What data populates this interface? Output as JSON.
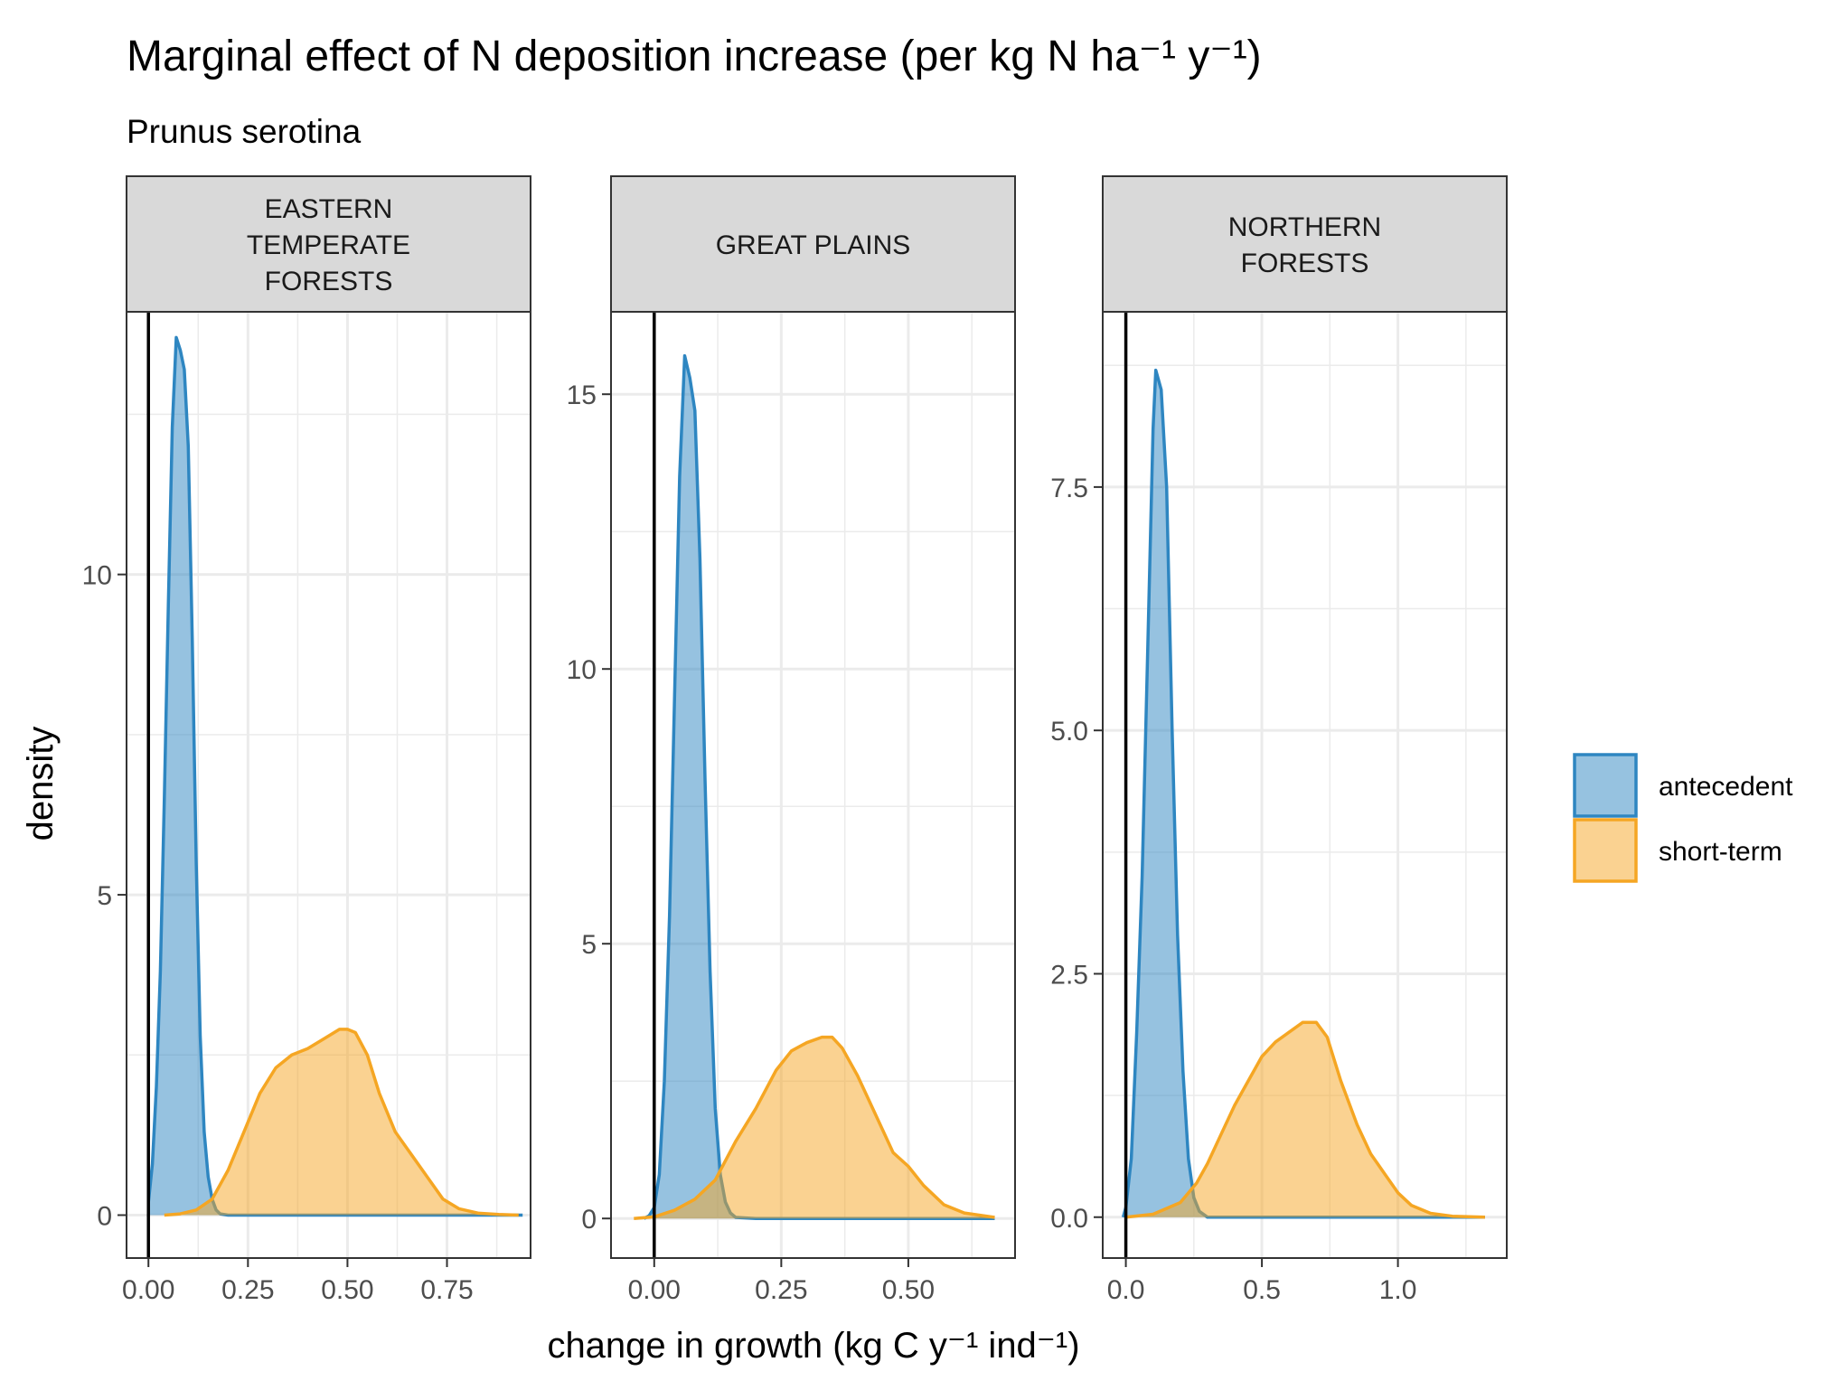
{
  "title": "Marginal effect of N deposition increase (per kg N ha⁻¹ y⁻¹)",
  "subtitle": "Prunus serotina",
  "colors": {
    "antecedent": "#2E86C1",
    "short_term": "#F5A623",
    "strip_fill": "#D9D9D9",
    "grid": "#EBEBEB"
  },
  "legend": {
    "placement": "right",
    "items": [
      {
        "key": "antecedent",
        "label": "antecedent"
      },
      {
        "key": "short_term",
        "label": "short-term"
      }
    ]
  },
  "chart_data": {
    "type": "area",
    "subtype": "density",
    "xlabel": "change in growth (kg C y⁻¹ ind⁻¹)",
    "ylabel": "density",
    "grid": true,
    "reference_line_x": 0,
    "panels": [
      {
        "strip": [
          "EASTERN",
          "TEMPERATE",
          "FORESTS"
        ],
        "xlim": [
          -0.055,
          0.96
        ],
        "ylim": [
          -0.67,
          14.1
        ],
        "xticks": [
          0,
          0.25,
          0.5,
          0.75
        ],
        "xtick_labels": [
          "0.00",
          "0.25",
          "0.50",
          "0.75"
        ],
        "yticks": [
          0,
          5,
          10
        ],
        "ytick_labels": [
          "0",
          "5",
          "10"
        ],
        "series": [
          {
            "name": "antecedent",
            "points": [
              [
                0.0,
                0.2
              ],
              [
                0.01,
                0.8
              ],
              [
                0.02,
                2.0
              ],
              [
                0.03,
                3.8
              ],
              [
                0.04,
                6.5
              ],
              [
                0.05,
                9.5
              ],
              [
                0.06,
                12.3
              ],
              [
                0.07,
                13.7
              ],
              [
                0.08,
                13.5
              ],
              [
                0.09,
                13.2
              ],
              [
                0.1,
                12.0
              ],
              [
                0.11,
                9.0
              ],
              [
                0.12,
                5.5
              ],
              [
                0.13,
                2.8
              ],
              [
                0.14,
                1.3
              ],
              [
                0.15,
                0.6
              ],
              [
                0.16,
                0.25
              ],
              [
                0.17,
                0.08
              ],
              [
                0.18,
                0.02
              ],
              [
                0.2,
                0.0
              ],
              [
                0.4,
                0.0
              ],
              [
                0.6,
                0.0
              ],
              [
                0.8,
                0.0
              ],
              [
                0.94,
                0.0
              ]
            ]
          },
          {
            "name": "short-term",
            "points": [
              [
                0.04,
                0.0
              ],
              [
                0.08,
                0.02
              ],
              [
                0.12,
                0.08
              ],
              [
                0.16,
                0.25
              ],
              [
                0.2,
                0.7
              ],
              [
                0.24,
                1.3
              ],
              [
                0.28,
                1.9
              ],
              [
                0.32,
                2.3
              ],
              [
                0.36,
                2.5
              ],
              [
                0.4,
                2.6
              ],
              [
                0.44,
                2.75
              ],
              [
                0.48,
                2.9
              ],
              [
                0.5,
                2.9
              ],
              [
                0.52,
                2.85
              ],
              [
                0.55,
                2.5
              ],
              [
                0.58,
                1.9
              ],
              [
                0.62,
                1.3
              ],
              [
                0.66,
                0.95
              ],
              [
                0.7,
                0.6
              ],
              [
                0.74,
                0.25
              ],
              [
                0.78,
                0.1
              ],
              [
                0.83,
                0.03
              ],
              [
                0.88,
                0.01
              ],
              [
                0.93,
                0.0
              ]
            ]
          }
        ]
      },
      {
        "strip": [
          "GREAT PLAINS"
        ],
        "xlim": [
          -0.085,
          0.71
        ],
        "ylim": [
          -0.72,
          16.5
        ],
        "xticks": [
          0,
          0.25,
          0.5
        ],
        "xtick_labels": [
          "0.00",
          "0.25",
          "0.50"
        ],
        "yticks": [
          0,
          5,
          10,
          15
        ],
        "ytick_labels": [
          "0",
          "5",
          "10",
          "15"
        ],
        "series": [
          {
            "name": "antecedent",
            "points": [
              [
                -0.02,
                0.0
              ],
              [
                -0.01,
                0.05
              ],
              [
                0.0,
                0.2
              ],
              [
                0.01,
                0.8
              ],
              [
                0.02,
                2.5
              ],
              [
                0.03,
                5.5
              ],
              [
                0.04,
                9.5
              ],
              [
                0.05,
                13.5
              ],
              [
                0.06,
                15.7
              ],
              [
                0.07,
                15.3
              ],
              [
                0.08,
                14.7
              ],
              [
                0.09,
                12.0
              ],
              [
                0.1,
                8.0
              ],
              [
                0.11,
                4.5
              ],
              [
                0.12,
                2.0
              ],
              [
                0.13,
                0.8
              ],
              [
                0.14,
                0.3
              ],
              [
                0.15,
                0.1
              ],
              [
                0.16,
                0.02
              ],
              [
                0.2,
                0.0
              ],
              [
                0.4,
                0.0
              ],
              [
                0.6,
                0.0
              ],
              [
                0.67,
                0.0
              ]
            ]
          },
          {
            "name": "short-term",
            "points": [
              [
                -0.04,
                0.0
              ],
              [
                0.0,
                0.03
              ],
              [
                0.04,
                0.15
              ],
              [
                0.08,
                0.35
              ],
              [
                0.12,
                0.7
              ],
              [
                0.16,
                1.4
              ],
              [
                0.2,
                2.0
              ],
              [
                0.24,
                2.7
              ],
              [
                0.27,
                3.05
              ],
              [
                0.3,
                3.2
              ],
              [
                0.33,
                3.3
              ],
              [
                0.35,
                3.3
              ],
              [
                0.37,
                3.1
              ],
              [
                0.4,
                2.6
              ],
              [
                0.43,
                2.0
              ],
              [
                0.47,
                1.2
              ],
              [
                0.5,
                0.95
              ],
              [
                0.53,
                0.6
              ],
              [
                0.57,
                0.25
              ],
              [
                0.61,
                0.1
              ],
              [
                0.67,
                0.02
              ]
            ]
          }
        ]
      },
      {
        "strip": [
          "NORTHERN",
          "FORESTS"
        ],
        "xlim": [
          -0.085,
          1.4
        ],
        "ylim": [
          -0.42,
          9.3
        ],
        "xticks": [
          0,
          0.5,
          1.0
        ],
        "xtick_labels": [
          "0.0",
          "0.5",
          "1.0"
        ],
        "yticks": [
          0,
          2.5,
          5,
          7.5
        ],
        "ytick_labels": [
          "0.0",
          "2.5",
          "5.0",
          "7.5"
        ],
        "series": [
          {
            "name": "antecedent",
            "points": [
              [
                -0.01,
                0.0
              ],
              [
                0.0,
                0.1
              ],
              [
                0.02,
                0.6
              ],
              [
                0.04,
                1.9
              ],
              [
                0.06,
                3.5
              ],
              [
                0.08,
                5.8
              ],
              [
                0.1,
                8.1
              ],
              [
                0.11,
                8.7
              ],
              [
                0.13,
                8.5
              ],
              [
                0.15,
                7.5
              ],
              [
                0.17,
                5.0
              ],
              [
                0.19,
                2.9
              ],
              [
                0.21,
                1.5
              ],
              [
                0.23,
                0.6
              ],
              [
                0.25,
                0.2
              ],
              [
                0.27,
                0.06
              ],
              [
                0.3,
                0.0
              ],
              [
                0.6,
                0.0
              ],
              [
                1.0,
                0.0
              ],
              [
                1.32,
                0.0
              ]
            ]
          },
          {
            "name": "short-term",
            "points": [
              [
                0.0,
                0.0
              ],
              [
                0.1,
                0.03
              ],
              [
                0.2,
                0.15
              ],
              [
                0.26,
                0.35
              ],
              [
                0.3,
                0.55
              ],
              [
                0.35,
                0.85
              ],
              [
                0.4,
                1.15
              ],
              [
                0.45,
                1.4
              ],
              [
                0.5,
                1.65
              ],
              [
                0.55,
                1.8
              ],
              [
                0.6,
                1.9
              ],
              [
                0.65,
                2.0
              ],
              [
                0.7,
                2.0
              ],
              [
                0.74,
                1.85
              ],
              [
                0.79,
                1.4
              ],
              [
                0.85,
                0.95
              ],
              [
                0.9,
                0.65
              ],
              [
                0.95,
                0.45
              ],
              [
                1.0,
                0.25
              ],
              [
                1.05,
                0.12
              ],
              [
                1.12,
                0.04
              ],
              [
                1.2,
                0.01
              ],
              [
                1.32,
                0.0
              ]
            ]
          }
        ]
      }
    ]
  }
}
